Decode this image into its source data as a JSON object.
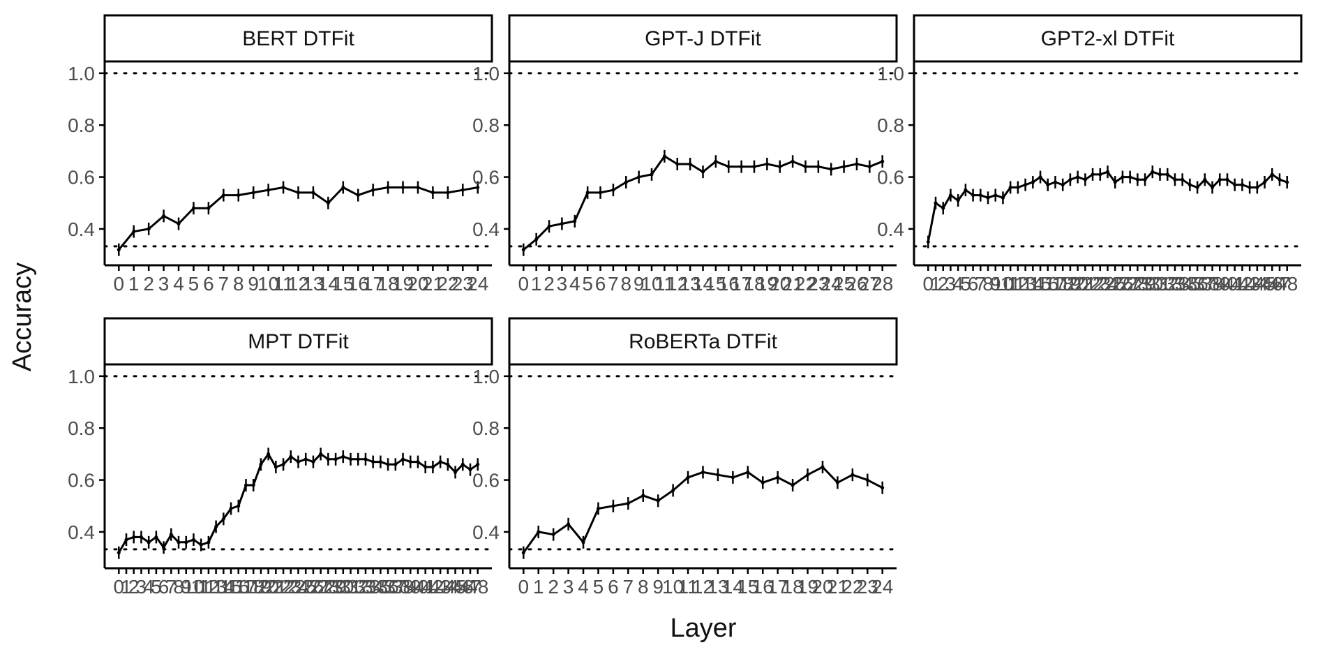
{
  "chart_data": {
    "type": "line",
    "xlabel": "Layer",
    "ylabel": "Accuracy",
    "ylim": [
      0.26,
      1.04
    ],
    "y_ticks": [
      0.4,
      0.6,
      0.8,
      1.0
    ],
    "y_tick_labels": [
      "0.4",
      "0.6",
      "0.8",
      "1.0"
    ],
    "reference_lines": [
      1.0,
      0.333
    ],
    "grid": false,
    "facets": [
      {
        "title": "BERT DTFit",
        "x": [
          0,
          1,
          2,
          3,
          4,
          5,
          6,
          7,
          8,
          9,
          10,
          11,
          12,
          13,
          14,
          15,
          16,
          17,
          18,
          19,
          20,
          21,
          22,
          23,
          24
        ],
        "tick_labels": [
          "0",
          "1",
          "2",
          "3",
          "4",
          "5",
          "6",
          "7",
          "8",
          "9",
          "10",
          "11",
          "12",
          "13",
          "14",
          "15",
          "16",
          "17",
          "18",
          "19",
          "20",
          "21",
          "22",
          "23",
          "24"
        ],
        "values": [
          0.32,
          0.39,
          0.4,
          0.45,
          0.42,
          0.48,
          0.48,
          0.53,
          0.53,
          0.54,
          0.55,
          0.56,
          0.54,
          0.54,
          0.5,
          0.56,
          0.53,
          0.55,
          0.56,
          0.56,
          0.56,
          0.54,
          0.54,
          0.55,
          0.56
        ]
      },
      {
        "title": "GPT-J DTFit",
        "x": [
          0,
          1,
          2,
          3,
          4,
          5,
          6,
          7,
          8,
          9,
          10,
          11,
          12,
          13,
          14,
          15,
          16,
          17,
          18,
          19,
          20,
          21,
          22,
          23,
          24,
          25,
          26,
          27,
          28
        ],
        "tick_labels": [
          "0",
          "1",
          "2",
          "3",
          "4",
          "5",
          "6",
          "7",
          "8",
          "9",
          "10",
          "11",
          "12",
          "13",
          "14",
          "15",
          "16",
          "17",
          "18",
          "19",
          "20",
          "21",
          "22",
          "23",
          "24",
          "25",
          "26",
          "27",
          "28"
        ],
        "values": [
          0.32,
          0.36,
          0.41,
          0.42,
          0.43,
          0.54,
          0.54,
          0.55,
          0.58,
          0.6,
          0.61,
          0.68,
          0.65,
          0.65,
          0.62,
          0.66,
          0.64,
          0.64,
          0.64,
          0.65,
          0.64,
          0.66,
          0.64,
          0.64,
          0.63,
          0.64,
          0.65,
          0.64,
          0.66
        ]
      },
      {
        "title": "GPT2-xl DTFit",
        "x": [
          0,
          1,
          2,
          3,
          4,
          5,
          6,
          7,
          8,
          9,
          10,
          11,
          12,
          13,
          14,
          15,
          16,
          17,
          18,
          19,
          20,
          21,
          22,
          23,
          24,
          25,
          26,
          27,
          28,
          29,
          30,
          31,
          32,
          33,
          34,
          35,
          36,
          37,
          38,
          39,
          40,
          41,
          42,
          43,
          44,
          45,
          46,
          47,
          48
        ],
        "tick_labels": [
          "0",
          "1",
          "2",
          "3",
          "4",
          "5",
          "6",
          "7",
          "8",
          "9",
          "10",
          "11",
          "12",
          "13",
          "14",
          "15",
          "16",
          "17",
          "18",
          "19",
          "20",
          "21",
          "22",
          "23",
          "24",
          "25",
          "26",
          "27",
          "28",
          "29",
          "30",
          "31",
          "32",
          "33",
          "34",
          "35",
          "36",
          "37",
          "38",
          "39",
          "40",
          "41",
          "42",
          "43",
          "44",
          "45",
          "46",
          "47",
          "48"
        ],
        "values": [
          0.35,
          0.5,
          0.48,
          0.53,
          0.51,
          0.55,
          0.53,
          0.53,
          0.52,
          0.53,
          0.52,
          0.56,
          0.56,
          0.57,
          0.58,
          0.6,
          0.57,
          0.58,
          0.57,
          0.59,
          0.6,
          0.59,
          0.61,
          0.61,
          0.62,
          0.58,
          0.6,
          0.6,
          0.59,
          0.59,
          0.62,
          0.61,
          0.61,
          0.59,
          0.59,
          0.57,
          0.56,
          0.59,
          0.56,
          0.59,
          0.59,
          0.57,
          0.57,
          0.56,
          0.56,
          0.58,
          0.61,
          0.59,
          0.58
        ]
      },
      {
        "title": "MPT DTFit",
        "x": [
          0,
          1,
          2,
          3,
          4,
          5,
          6,
          7,
          8,
          9,
          10,
          11,
          12,
          13,
          14,
          15,
          16,
          17,
          18,
          19,
          20,
          21,
          22,
          23,
          24,
          25,
          26,
          27,
          28,
          29,
          30,
          31,
          32,
          33,
          34,
          35,
          36,
          37,
          38,
          39,
          40,
          41,
          42,
          43,
          44,
          45,
          46,
          47,
          48
        ],
        "tick_labels": [
          "0",
          "1",
          "2",
          "3",
          "4",
          "5",
          "6",
          "7",
          "8",
          "9",
          "10",
          "11",
          "12",
          "13",
          "14",
          "15",
          "16",
          "17",
          "18",
          "19",
          "20",
          "21",
          "22",
          "23",
          "24",
          "25",
          "26",
          "27",
          "28",
          "29",
          "30",
          "31",
          "32",
          "33",
          "34",
          "35",
          "36",
          "37",
          "38",
          "39",
          "40",
          "41",
          "42",
          "43",
          "44",
          "45",
          "46",
          "47",
          "48"
        ],
        "values": [
          0.32,
          0.37,
          0.38,
          0.38,
          0.36,
          0.38,
          0.34,
          0.39,
          0.36,
          0.36,
          0.37,
          0.35,
          0.36,
          0.42,
          0.45,
          0.49,
          0.5,
          0.58,
          0.58,
          0.66,
          0.7,
          0.65,
          0.66,
          0.69,
          0.67,
          0.68,
          0.67,
          0.7,
          0.68,
          0.68,
          0.69,
          0.68,
          0.68,
          0.68,
          0.67,
          0.67,
          0.66,
          0.66,
          0.68,
          0.67,
          0.67,
          0.65,
          0.65,
          0.67,
          0.66,
          0.63,
          0.66,
          0.64,
          0.66
        ]
      },
      {
        "title": "RoBERTa DTFit",
        "x": [
          0,
          1,
          2,
          3,
          4,
          5,
          6,
          7,
          8,
          9,
          10,
          11,
          12,
          13,
          14,
          15,
          16,
          17,
          18,
          19,
          20,
          21,
          22,
          23,
          24
        ],
        "tick_labels": [
          "0",
          "1",
          "2",
          "3",
          "4",
          "5",
          "6",
          "7",
          "8",
          "9",
          "10",
          "11",
          "12",
          "13",
          "14",
          "15",
          "16",
          "17",
          "18",
          "19",
          "20",
          "21",
          "22",
          "23",
          "24"
        ],
        "values": [
          0.32,
          0.4,
          0.39,
          0.43,
          0.36,
          0.49,
          0.5,
          0.51,
          0.54,
          0.52,
          0.56,
          0.61,
          0.63,
          0.62,
          0.61,
          0.63,
          0.59,
          0.61,
          0.58,
          0.62,
          0.65,
          0.59,
          0.62,
          0.6,
          0.57
        ]
      }
    ]
  }
}
